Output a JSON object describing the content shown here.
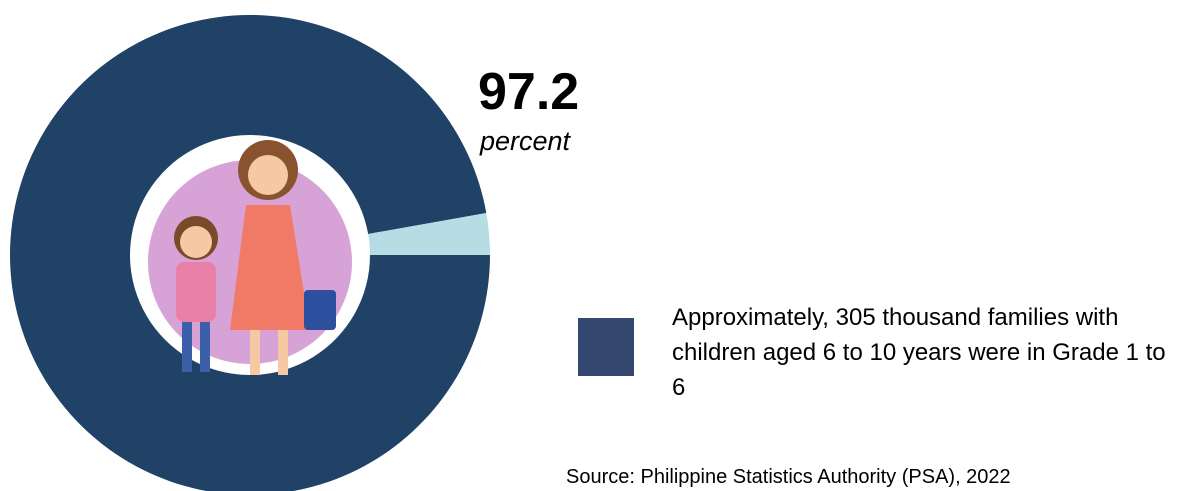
{
  "chart_data": {
    "type": "pie",
    "categories": [
      "Approximately, 305 thousand families with children aged 6 to 10 years were in Grade 1 to 6",
      null
    ],
    "values": [
      97.2,
      2.8
    ],
    "colors": [
      "#1f4266",
      "#b5dde3"
    ],
    "unit_label": "percent",
    "source": "Source: Philippine Statistics Authority (PSA), 2022"
  }
}
